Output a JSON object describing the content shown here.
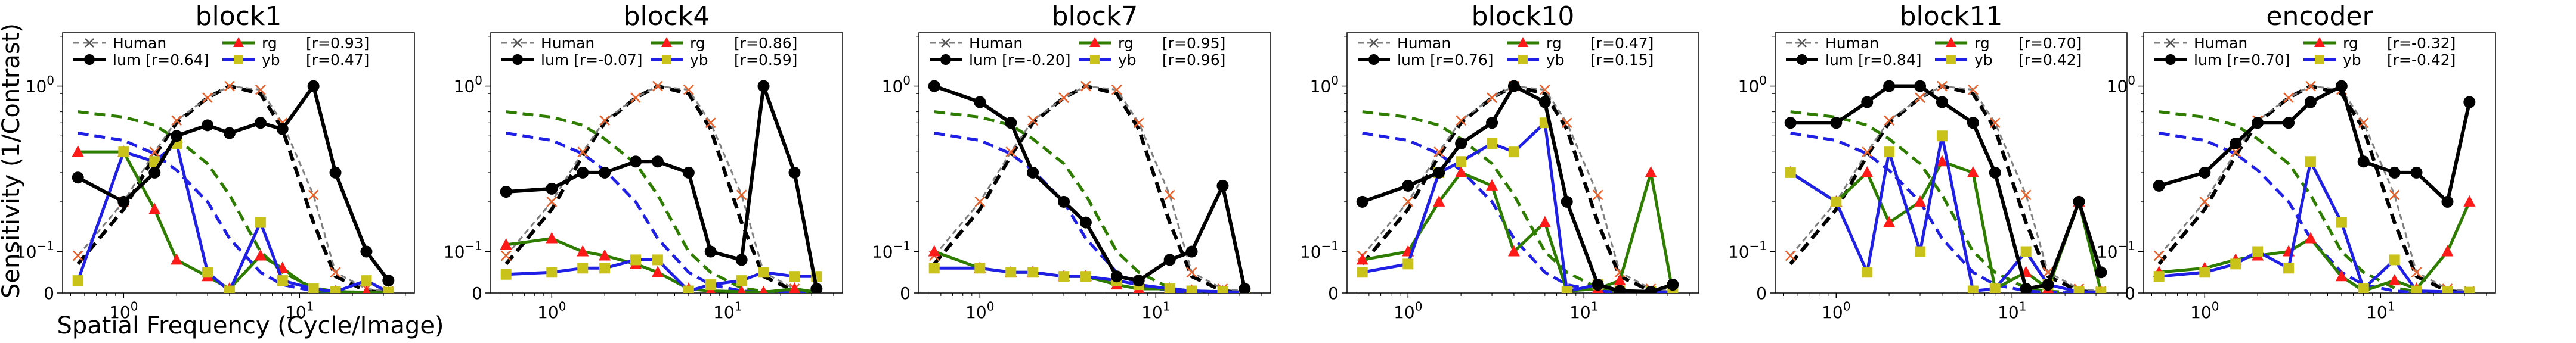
{
  "figure": {
    "ylabel": "Sensitivity (1/Contrast)",
    "xlabel": "Spatial Frequency (Cycle/Image)"
  },
  "colors": {
    "human": "#7f7f7f",
    "lum": "#000000",
    "rg": "#2e7d00",
    "yb": "#1f1fe6",
    "rg_marker": "#ff1a1a",
    "yb_marker": "#c8c21a",
    "human_curve": "#000000",
    "rg_curve": "#2e7d00",
    "yb_curve": "#1f1fe6"
  },
  "axes": {
    "x_ticks": [
      {
        "value": 1,
        "label": "10",
        "sup": "0"
      },
      {
        "value": 10,
        "label": "10",
        "sup": "1"
      }
    ],
    "y_ticks": [
      {
        "value": 0,
        "label": "0"
      },
      {
        "value": 0.1,
        "label": "10",
        "sup": "−1"
      },
      {
        "value": 1,
        "label": "10",
        "sup": "0"
      }
    ],
    "xscale": "log",
    "yscale": "symlog",
    "xlim": [
      0.45,
      45
    ],
    "ylim": [
      0,
      2.1
    ]
  },
  "chart_data": [
    {
      "type": "line",
      "title": "block1",
      "legend": {
        "human": "Human",
        "lum": "lum [r=0.64]",
        "rg": "rg",
        "rg_r": "[r=0.93]",
        "yb": "yb",
        "yb_r": "[r=0.47]"
      },
      "x": [
        0.55,
        1.0,
        1.5,
        2.0,
        3.0,
        4.0,
        6.0,
        8.0,
        12.0,
        16.0,
        24.0,
        32.0
      ],
      "series": [
        {
          "key": "human",
          "values": [
            0.09,
            0.2,
            0.4,
            0.62,
            0.85,
            1.0,
            0.95,
            0.6,
            0.22,
            0.05,
            0.01,
            0.004
          ]
        },
        {
          "key": "lum",
          "values": [
            0.28,
            0.2,
            0.3,
            0.5,
            0.58,
            0.52,
            0.6,
            0.55,
            1.0,
            0.3,
            0.1,
            0.03
          ]
        },
        {
          "key": "rg",
          "values": [
            0.4,
            0.4,
            0.18,
            0.08,
            0.04,
            0.01,
            0.09,
            0.06,
            0.005,
            0.003,
            0.002,
            0.001
          ]
        },
        {
          "key": "yb",
          "values": [
            0.03,
            0.4,
            0.35,
            0.45,
            0.05,
            0.005,
            0.15,
            0.03,
            0.01,
            0.003,
            0.03,
            0.002
          ]
        },
        {
          "key": "human_curve",
          "values": [
            0.07,
            0.18,
            0.38,
            0.6,
            0.85,
            1.0,
            0.9,
            0.55,
            0.15,
            0.04,
            0.005,
            0.001
          ]
        },
        {
          "key": "rg_curve",
          "values": [
            0.7,
            0.65,
            0.58,
            0.48,
            0.34,
            0.22,
            0.1,
            0.05,
            0.012,
            0.004,
            0.001,
            0.0
          ]
        },
        {
          "key": "yb_curve",
          "values": [
            0.52,
            0.47,
            0.39,
            0.31,
            0.2,
            0.12,
            0.05,
            0.02,
            0.005,
            0.001,
            0.0,
            0.0
          ]
        }
      ]
    },
    {
      "type": "line",
      "title": "block4",
      "legend": {
        "human": "Human",
        "lum": "lum [r=-0.07]",
        "rg": "rg",
        "rg_r": "[r=0.86]",
        "yb": "yb",
        "yb_r": "[r=0.59]"
      },
      "x": [
        0.55,
        1.0,
        1.5,
        2.0,
        3.0,
        4.0,
        6.0,
        8.0,
        12.0,
        16.0,
        24.0,
        32.0
      ],
      "series": [
        {
          "key": "human",
          "values": [
            0.09,
            0.2,
            0.4,
            0.62,
            0.85,
            1.0,
            0.95,
            0.6,
            0.22,
            0.05,
            0.01,
            0.004
          ]
        },
        {
          "key": "lum",
          "values": [
            0.23,
            0.24,
            0.3,
            0.3,
            0.35,
            0.35,
            0.3,
            0.1,
            0.08,
            1.0,
            0.3,
            0.01
          ]
        },
        {
          "key": "rg",
          "values": [
            0.11,
            0.12,
            0.1,
            0.09,
            0.07,
            0.05,
            0.01,
            0.005,
            0.003,
            0.002,
            0.01,
            0.002
          ]
        },
        {
          "key": "yb",
          "values": [
            0.045,
            0.05,
            0.06,
            0.06,
            0.08,
            0.08,
            0.005,
            0.02,
            0.03,
            0.05,
            0.04,
            0.04
          ]
        },
        {
          "key": "human_curve",
          "values": [
            0.07,
            0.18,
            0.38,
            0.6,
            0.85,
            1.0,
            0.9,
            0.55,
            0.15,
            0.04,
            0.005,
            0.001
          ]
        },
        {
          "key": "rg_curve",
          "values": [
            0.7,
            0.65,
            0.58,
            0.48,
            0.34,
            0.22,
            0.1,
            0.05,
            0.012,
            0.004,
            0.001,
            0.0
          ]
        },
        {
          "key": "yb_curve",
          "values": [
            0.52,
            0.47,
            0.39,
            0.31,
            0.2,
            0.12,
            0.05,
            0.02,
            0.005,
            0.001,
            0.0,
            0.0
          ]
        }
      ]
    },
    {
      "type": "line",
      "title": "block7",
      "legend": {
        "human": "Human",
        "lum": "lum [r=-0.20]",
        "rg": "rg",
        "rg_r": "[r=0.95]",
        "yb": "yb",
        "yb_r": "[r=0.96]"
      },
      "x": [
        0.55,
        1.0,
        1.5,
        2.0,
        3.0,
        4.0,
        6.0,
        8.0,
        12.0,
        16.0,
        24.0,
        32.0
      ],
      "series": [
        {
          "key": "human",
          "values": [
            0.09,
            0.2,
            0.4,
            0.62,
            0.85,
            1.0,
            0.95,
            0.6,
            0.22,
            0.05,
            0.01,
            0.004
          ]
        },
        {
          "key": "lum",
          "values": [
            1.0,
            0.8,
            0.6,
            0.3,
            0.2,
            0.15,
            0.04,
            0.03,
            0.08,
            0.1,
            0.25,
            0.01
          ]
        },
        {
          "key": "rg",
          "values": [
            0.1,
            0.06,
            0.05,
            0.05,
            0.04,
            0.04,
            0.02,
            0.01,
            0.01,
            0.005,
            0.003,
            0.002
          ]
        },
        {
          "key": "yb",
          "values": [
            0.06,
            0.06,
            0.05,
            0.05,
            0.04,
            0.04,
            0.03,
            0.02,
            0.01,
            0.005,
            0.003,
            0.002
          ]
        },
        {
          "key": "human_curve",
          "values": [
            0.07,
            0.18,
            0.38,
            0.6,
            0.85,
            1.0,
            0.9,
            0.55,
            0.15,
            0.04,
            0.005,
            0.001
          ]
        },
        {
          "key": "rg_curve",
          "values": [
            0.7,
            0.65,
            0.58,
            0.48,
            0.34,
            0.22,
            0.1,
            0.05,
            0.012,
            0.004,
            0.001,
            0.0
          ]
        },
        {
          "key": "yb_curve",
          "values": [
            0.52,
            0.47,
            0.39,
            0.31,
            0.2,
            0.12,
            0.05,
            0.02,
            0.005,
            0.001,
            0.0,
            0.0
          ]
        }
      ]
    },
    {
      "type": "line",
      "title": "block10",
      "legend": {
        "human": "Human",
        "lum": "lum [r=0.76]",
        "rg": "rg",
        "rg_r": "[r=0.47]",
        "yb": "yb",
        "yb_r": "[r=0.15]"
      },
      "x": [
        0.55,
        1.0,
        1.5,
        2.0,
        3.0,
        4.0,
        6.0,
        8.0,
        12.0,
        16.0,
        24.0,
        32.0
      ],
      "series": [
        {
          "key": "human",
          "values": [
            0.09,
            0.2,
            0.4,
            0.62,
            0.85,
            1.0,
            0.95,
            0.6,
            0.22,
            0.05,
            0.01,
            0.004
          ]
        },
        {
          "key": "lum",
          "values": [
            0.2,
            0.25,
            0.3,
            0.45,
            0.6,
            1.0,
            0.8,
            0.2,
            0.02,
            0.005,
            0.003,
            0.02
          ]
        },
        {
          "key": "rg",
          "values": [
            0.08,
            0.1,
            0.2,
            0.3,
            0.25,
            0.1,
            0.15,
            0.005,
            0.01,
            0.03,
            0.3,
            0.002
          ]
        },
        {
          "key": "yb",
          "values": [
            0.05,
            0.07,
            0.3,
            0.35,
            0.45,
            0.4,
            0.6,
            0.004,
            0.02,
            0.005,
            0.003,
            0.002
          ]
        },
        {
          "key": "human_curve",
          "values": [
            0.07,
            0.18,
            0.38,
            0.6,
            0.85,
            1.0,
            0.9,
            0.55,
            0.15,
            0.04,
            0.005,
            0.001
          ]
        },
        {
          "key": "rg_curve",
          "values": [
            0.7,
            0.65,
            0.58,
            0.48,
            0.34,
            0.22,
            0.1,
            0.05,
            0.012,
            0.004,
            0.001,
            0.0
          ]
        },
        {
          "key": "yb_curve",
          "values": [
            0.52,
            0.47,
            0.39,
            0.31,
            0.2,
            0.12,
            0.05,
            0.02,
            0.005,
            0.001,
            0.0,
            0.0
          ]
        }
      ]
    },
    {
      "type": "line",
      "title": "block11",
      "legend": {
        "human": "Human",
        "lum": "lum [r=0.84]",
        "rg": "rg",
        "rg_r": "[r=0.70]",
        "yb": "yb",
        "yb_r": "[r=0.42]"
      },
      "x": [
        0.55,
        1.0,
        1.5,
        2.0,
        3.0,
        4.0,
        6.0,
        8.0,
        12.0,
        16.0,
        24.0,
        32.0
      ],
      "series": [
        {
          "key": "human",
          "values": [
            0.09,
            0.2,
            0.4,
            0.62,
            0.85,
            1.0,
            0.95,
            0.6,
            0.22,
            0.05,
            0.01,
            0.004
          ]
        },
        {
          "key": "lum",
          "values": [
            0.6,
            0.6,
            0.8,
            1.0,
            1.0,
            0.8,
            0.6,
            0.3,
            0.01,
            0.02,
            0.2,
            0.05
          ]
        },
        {
          "key": "rg",
          "values": [
            0.3,
            0.2,
            0.3,
            0.15,
            0.2,
            0.35,
            0.3,
            0.01,
            0.05,
            0.01,
            0.2,
            0.003
          ]
        },
        {
          "key": "yb",
          "values": [
            0.3,
            0.2,
            0.05,
            0.4,
            0.1,
            0.5,
            0.005,
            0.01,
            0.1,
            0.02,
            0.003,
            0.002
          ]
        },
        {
          "key": "human_curve",
          "values": [
            0.07,
            0.18,
            0.38,
            0.6,
            0.85,
            1.0,
            0.9,
            0.55,
            0.15,
            0.04,
            0.005,
            0.001
          ]
        },
        {
          "key": "rg_curve",
          "values": [
            0.7,
            0.65,
            0.58,
            0.48,
            0.34,
            0.22,
            0.1,
            0.05,
            0.012,
            0.004,
            0.001,
            0.0
          ]
        },
        {
          "key": "yb_curve",
          "values": [
            0.52,
            0.47,
            0.39,
            0.31,
            0.2,
            0.12,
            0.05,
            0.02,
            0.005,
            0.001,
            0.0,
            0.0
          ]
        }
      ]
    },
    {
      "type": "line",
      "title": "encoder",
      "legend": {
        "human": "Human",
        "lum": "lum [r=0.70]",
        "rg": "rg",
        "rg_r": "[r=-0.32]",
        "yb": "yb",
        "yb_r": "[r=-0.42]"
      },
      "x": [
        0.55,
        1.0,
        1.5,
        2.0,
        3.0,
        4.0,
        6.0,
        8.0,
        12.0,
        16.0,
        24.0,
        32.0
      ],
      "series": [
        {
          "key": "human",
          "values": [
            0.09,
            0.2,
            0.4,
            0.62,
            0.85,
            1.0,
            0.95,
            0.6,
            0.22,
            0.05,
            0.01,
            0.004
          ]
        },
        {
          "key": "lum",
          "values": [
            0.25,
            0.3,
            0.45,
            0.6,
            0.6,
            0.8,
            1.0,
            0.35,
            0.3,
            0.3,
            0.2,
            0.8
          ]
        },
        {
          "key": "rg",
          "values": [
            0.05,
            0.06,
            0.08,
            0.09,
            0.1,
            0.12,
            0.04,
            0.005,
            0.03,
            0.01,
            0.1,
            0.2
          ]
        },
        {
          "key": "yb",
          "values": [
            0.04,
            0.05,
            0.07,
            0.1,
            0.06,
            0.35,
            0.15,
            0.01,
            0.08,
            0.005,
            0.003,
            0.002
          ]
        },
        {
          "key": "human_curve",
          "values": [
            0.07,
            0.18,
            0.38,
            0.6,
            0.85,
            1.0,
            0.9,
            0.55,
            0.15,
            0.04,
            0.005,
            0.001
          ]
        },
        {
          "key": "rg_curve",
          "values": [
            0.7,
            0.65,
            0.58,
            0.48,
            0.34,
            0.22,
            0.1,
            0.05,
            0.012,
            0.004,
            0.001,
            0.0
          ]
        },
        {
          "key": "yb_curve",
          "values": [
            0.52,
            0.47,
            0.39,
            0.31,
            0.2,
            0.12,
            0.05,
            0.02,
            0.005,
            0.001,
            0.0,
            0.0
          ]
        }
      ]
    }
  ]
}
